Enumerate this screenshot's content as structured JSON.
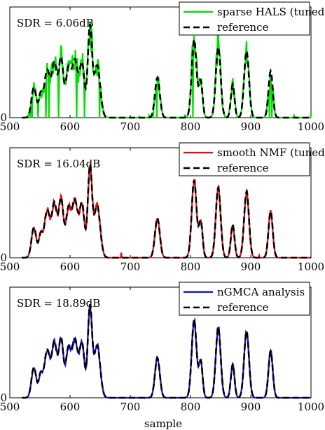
{
  "chart_data": [
    {
      "type": "line",
      "sdr_label": "SDR = 6.06dB",
      "xlim": [
        500,
        1000
      ],
      "xticks": [
        500,
        600,
        700,
        800,
        900,
        1000
      ],
      "yticks": [
        0
      ],
      "grid": false,
      "legend_position": "top-right",
      "series": [
        {
          "name": "sparse HALS (tuned)",
          "color": "#00e000",
          "style": "solid",
          "seed": 11,
          "noise": 0.28,
          "dropout": 0.07,
          "spur": 0.02
        },
        {
          "name": "reference",
          "color": "#000000",
          "style": "dashed",
          "seed": 0,
          "noise": 0,
          "dropout": 0,
          "spur": 0
        }
      ]
    },
    {
      "type": "line",
      "sdr_label": "SDR = 16.04dB",
      "xlim": [
        500,
        1000
      ],
      "xticks": [
        500,
        600,
        700,
        800,
        900,
        1000
      ],
      "yticks": [
        0
      ],
      "grid": false,
      "legend_position": "top-right",
      "series": [
        {
          "name": "smooth NMF (tuned)",
          "color": "#e01010",
          "style": "solid",
          "seed": 23,
          "noise": 0.07,
          "dropout": 0,
          "spur": 0.006
        },
        {
          "name": "reference",
          "color": "#000000",
          "style": "dashed",
          "seed": 0,
          "noise": 0,
          "dropout": 0,
          "spur": 0
        }
      ]
    },
    {
      "type": "line",
      "sdr_label": "SDR = 18.89dB",
      "xlabel": "sample",
      "xlim": [
        500,
        1000
      ],
      "xticks": [
        500,
        600,
        700,
        800,
        900,
        1000
      ],
      "yticks": [
        0
      ],
      "grid": false,
      "legend_position": "top-right",
      "series": [
        {
          "name": "nGMCA analysis",
          "color": "#1010d0",
          "style": "solid",
          "seed": 37,
          "noise": 0.05,
          "dropout": 0,
          "spur": 0.002
        },
        {
          "name": "reference",
          "color": "#000000",
          "style": "dashed",
          "seed": 0,
          "noise": 0,
          "dropout": 0,
          "spur": 0
        }
      ]
    }
  ],
  "reference_peaks": [
    {
      "x": 540,
      "y": 0.32,
      "w": 4
    },
    {
      "x": 551,
      "y": 0.22,
      "w": 3
    },
    {
      "x": 562,
      "y": 0.5,
      "w": 5
    },
    {
      "x": 574,
      "y": 0.55,
      "w": 4
    },
    {
      "x": 585,
      "y": 0.62,
      "w": 4
    },
    {
      "x": 597,
      "y": 0.48,
      "w": 4
    },
    {
      "x": 608,
      "y": 0.6,
      "w": 5
    },
    {
      "x": 620,
      "y": 0.55,
      "w": 4
    },
    {
      "x": 633,
      "y": 0.95,
      "w": 3.5
    },
    {
      "x": 645,
      "y": 0.55,
      "w": 5
    },
    {
      "x": 745,
      "y": 0.42,
      "w": 4
    },
    {
      "x": 806,
      "y": 0.82,
      "w": 4
    },
    {
      "x": 817,
      "y": 0.38,
      "w": 3
    },
    {
      "x": 846,
      "y": 0.74,
      "w": 4
    },
    {
      "x": 870,
      "y": 0.35,
      "w": 3
    },
    {
      "x": 893,
      "y": 0.7,
      "w": 4
    },
    {
      "x": 933,
      "y": 0.49,
      "w": 3.5
    }
  ]
}
